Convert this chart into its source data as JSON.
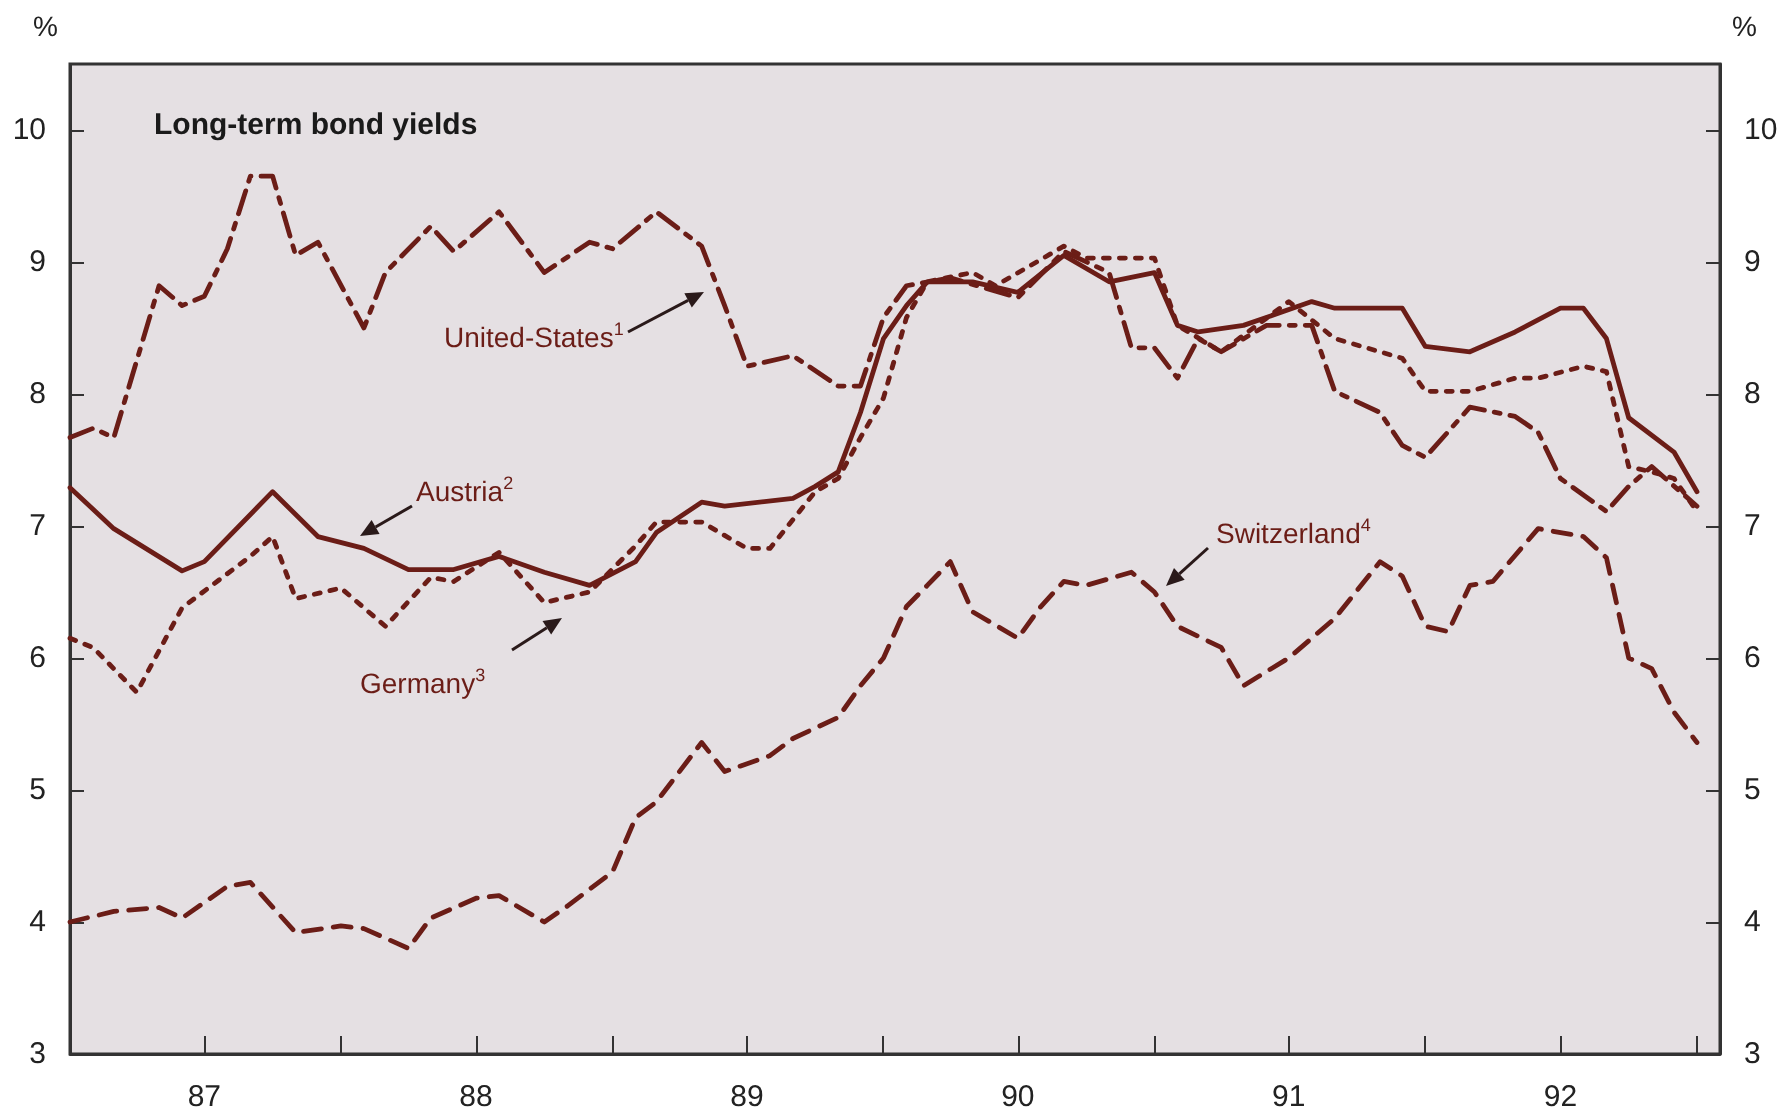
{
  "chart_data": {
    "type": "line",
    "title": "Long-term bond yields",
    "ylabel": "%",
    "y2label": "%",
    "xlim": [
      "1987-01",
      "1993-02"
    ],
    "xticks": [
      {
        "value": "1987-07",
        "label": "87"
      },
      {
        "value": "1988-01",
        "label": null
      },
      {
        "value": "1988-07",
        "label": "88"
      },
      {
        "value": "1989-01",
        "label": null
      },
      {
        "value": "1989-07",
        "label": "89"
      },
      {
        "value": "1990-01",
        "label": null
      },
      {
        "value": "1990-07",
        "label": "90"
      },
      {
        "value": "1991-01",
        "label": null
      },
      {
        "value": "1991-07",
        "label": "91"
      },
      {
        "value": "1992-01",
        "label": null
      },
      {
        "value": "1992-07",
        "label": "92"
      },
      {
        "value": "1993-01",
        "label": null
      }
    ],
    "ylim": [
      3,
      10.5
    ],
    "yticks": [
      3,
      4,
      5,
      6,
      7,
      8,
      9,
      10
    ],
    "y2lim": [
      3,
      10.5
    ],
    "y2ticks": [
      3,
      4,
      5,
      6,
      7,
      8,
      9,
      10
    ],
    "grid": false,
    "legend": false,
    "marker": "none",
    "series": [
      {
        "name": "United-States$^{1}$",
        "color": "#6b1d17",
        "line_style": "dashdot",
        "x": [
          "1987-01",
          "1987-02",
          "1987-03",
          "1987-05",
          "1987-06",
          "1987-07",
          "1987-08",
          "1987-09",
          "1987-10",
          "1987-11",
          "1987-12",
          "1988-02",
          "1988-03",
          "1988-05",
          "1988-06",
          "1988-08",
          "1988-10",
          "1988-12",
          "1989-01",
          "1989-03",
          "1989-05",
          "1989-06",
          "1989-07",
          "1989-09",
          "1989-11",
          "1989-12",
          "1990-01",
          "1990-02",
          "1990-04",
          "1990-07",
          "1990-09",
          "1990-11",
          "1990-12",
          "1991-01",
          "1991-02",
          "1991-03",
          "1991-04",
          "1991-06",
          "1991-08",
          "1991-09",
          "1991-11",
          "1991-12",
          "1992-01",
          "1992-03",
          "1992-05",
          "1992-06",
          "1992-07",
          "1992-09",
          "1992-10",
          "1992-11",
          "1993-01"
        ],
        "values": [
          7.67,
          7.74,
          7.67,
          8.82,
          8.67,
          8.74,
          9.1,
          9.65,
          9.65,
          9.05,
          9.15,
          8.5,
          8.92,
          9.27,
          9.08,
          9.38,
          8.92,
          9.15,
          9.1,
          9.38,
          9.12,
          8.67,
          8.21,
          8.29,
          8.06,
          8.06,
          8.58,
          8.82,
          8.88,
          8.73,
          9.08,
          8.92,
          8.35,
          8.35,
          8.12,
          8.42,
          8.32,
          8.52,
          8.52,
          8.02,
          7.86,
          7.61,
          7.52,
          7.9,
          7.83,
          7.71,
          7.36,
          7.11,
          7.3,
          7.45,
          7.15
        ]
      },
      {
        "name": "Austria$^{2}$",
        "color": "#6b1d17",
        "line_style": "solid",
        "x": [
          "1987-01",
          "1987-03",
          "1987-06",
          "1987-07",
          "1987-10",
          "1987-12",
          "1988-02",
          "1988-04",
          "1988-06",
          "1988-08",
          "1988-10",
          "1988-12",
          "1989-02",
          "1989-03",
          "1989-05",
          "1989-06",
          "1989-09",
          "1989-10",
          "1989-11",
          "1989-12",
          "1990-01",
          "1990-02",
          "1990-03",
          "1990-05",
          "1990-07",
          "1990-09",
          "1990-11",
          "1991-01",
          "1991-02",
          "1991-03",
          "1991-05",
          "1991-08",
          "1991-09",
          "1991-12",
          "1992-01",
          "1992-03",
          "1992-05",
          "1992-07",
          "1992-08",
          "1992-09",
          "1992-10",
          "1992-12",
          "1993-01"
        ],
        "values": [
          7.29,
          6.98,
          6.66,
          6.73,
          7.26,
          6.92,
          6.83,
          6.67,
          6.67,
          6.77,
          6.65,
          6.55,
          6.73,
          6.95,
          7.18,
          7.15,
          7.21,
          7.3,
          7.41,
          7.86,
          8.42,
          8.67,
          8.85,
          8.85,
          8.77,
          9.05,
          8.85,
          8.92,
          8.52,
          8.47,
          8.52,
          8.7,
          8.65,
          8.65,
          8.36,
          8.32,
          8.47,
          8.65,
          8.65,
          8.42,
          7.82,
          7.56,
          7.26
        ]
      },
      {
        "name": "Germany$^{3}$",
        "color": "#6b1d17",
        "line_style": "dotted",
        "x": [
          "1987-01",
          "1987-02",
          "1987-04",
          "1987-06",
          "1987-09",
          "1987-10",
          "1987-11",
          "1988-01",
          "1988-03",
          "1988-05",
          "1988-06",
          "1988-08",
          "1988-10",
          "1988-12",
          "1989-02",
          "1989-03",
          "1989-05",
          "1989-07",
          "1989-08",
          "1989-10",
          "1989-11",
          "1989-12",
          "1990-01",
          "1990-02",
          "1990-03",
          "1990-05",
          "1990-06",
          "1990-09",
          "1990-10",
          "1991-01",
          "1991-02",
          "1991-04",
          "1991-07",
          "1991-09",
          "1991-12",
          "1992-01",
          "1992-03",
          "1992-05",
          "1992-06",
          "1992-08",
          "1992-09",
          "1992-10",
          "1992-11",
          "1992-12",
          "1993-01"
        ],
        "values": [
          6.15,
          6.08,
          5.74,
          6.38,
          6.77,
          6.92,
          6.45,
          6.53,
          6.24,
          6.61,
          6.58,
          6.8,
          6.42,
          6.5,
          6.85,
          7.03,
          7.03,
          6.83,
          6.83,
          7.26,
          7.36,
          7.67,
          7.97,
          8.58,
          8.85,
          8.92,
          8.82,
          9.12,
          9.03,
          9.03,
          8.52,
          8.32,
          8.7,
          8.42,
          8.27,
          8.02,
          8.02,
          8.12,
          8.12,
          8.21,
          8.17,
          7.45,
          7.41,
          7.36,
          7.11
        ]
      },
      {
        "name": "Switzerland$^{4}$",
        "color": "#6b1d17",
        "line_style": "dashed",
        "x": [
          "1987-01",
          "1987-03",
          "1987-05",
          "1987-06",
          "1987-08",
          "1987-09",
          "1987-11",
          "1988-01",
          "1988-02",
          "1988-04",
          "1988-05",
          "1988-07",
          "1988-08",
          "1988-10",
          "1988-11",
          "1989-01",
          "1989-02",
          "1989-03",
          "1989-05",
          "1989-06",
          "1989-08",
          "1989-09",
          "1989-11",
          "1989-12",
          "1990-01",
          "1990-02",
          "1990-03",
          "1990-04",
          "1990-05",
          "1990-07",
          "1990-08",
          "1990-09",
          "1990-10",
          "1990-12",
          "1991-01",
          "1991-02",
          "1991-04",
          "1991-05",
          "1991-07",
          "1991-08",
          "1991-09",
          "1991-11",
          "1991-12",
          "1992-01",
          "1992-02",
          "1992-03",
          "1992-04",
          "1992-06",
          "1992-08",
          "1992-09",
          "1992-10",
          "1992-11",
          "1992-12",
          "1993-01"
        ],
        "values": [
          4.0,
          4.08,
          4.11,
          4.03,
          4.27,
          4.3,
          3.92,
          3.97,
          3.95,
          3.8,
          4.03,
          4.18,
          4.2,
          4.0,
          4.12,
          4.38,
          4.79,
          4.91,
          5.36,
          5.14,
          5.26,
          5.39,
          5.55,
          5.79,
          6.0,
          6.39,
          6.55,
          6.73,
          6.35,
          6.15,
          6.39,
          6.58,
          6.55,
          6.65,
          6.5,
          6.24,
          6.08,
          5.79,
          6.0,
          6.15,
          6.3,
          6.73,
          6.62,
          6.24,
          6.2,
          6.55,
          6.58,
          6.98,
          6.92,
          6.76,
          6.0,
          5.92,
          5.59,
          5.36
        ]
      }
    ]
  }
}
